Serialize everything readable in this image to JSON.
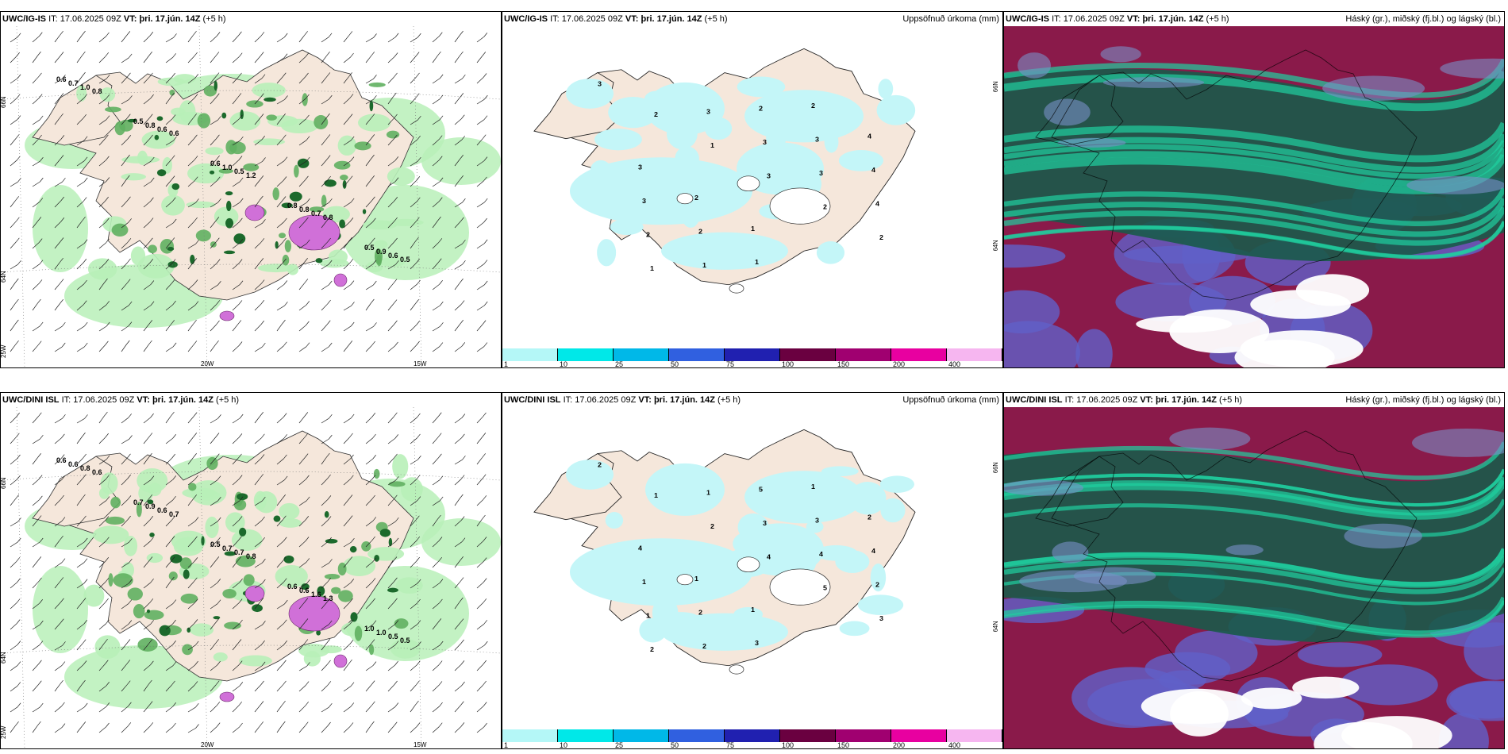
{
  "panels": [
    {
      "model": "UWC/IG-IS",
      "it_label": "IT:",
      "it": "17.06.2025 09Z",
      "vt_label": "VT:",
      "vt": "þri. 17.jún. 14Z",
      "lead": "(+5 h)",
      "right_title": "",
      "axis": {
        "lat1": "66N",
        "lat2": "64N",
        "lat3": "25W",
        "lon1": "20W",
        "lon2": "15W"
      },
      "labels": [
        "0.6",
        "0.5",
        "0.6",
        "0.8",
        "0.5",
        "0.7",
        "0.8",
        "1.0",
        "0.8",
        "0.9",
        "1.0",
        "0.6",
        "0.5",
        "0.7",
        "0.6",
        "0.8",
        "0.6",
        "1.2",
        "0.8",
        "0.5"
      ]
    },
    {
      "model": "UWC/IG-IS",
      "it_label": "IT:",
      "it": "17.06.2025 09Z",
      "vt_label": "VT:",
      "vt": "þri. 17.jún. 14Z",
      "lead": "(+5 h)",
      "right_title": "Uppsöfnuð úrkoma (mm)",
      "axis": {
        "lat1": "66N",
        "lat2": "64N"
      },
      "labels": [
        "3",
        "2",
        "1",
        "3",
        "2",
        "2",
        "1",
        "3",
        "3",
        "3",
        "4",
        "2",
        "1",
        "2",
        "3",
        "4",
        "3",
        "2",
        "1",
        "2",
        "4",
        "3",
        "2",
        "1"
      ]
    },
    {
      "model": "UWC/IG-IS",
      "it_label": "IT:",
      "it": "17.06.2025 09Z",
      "vt_label": "VT:",
      "vt": "þri. 17.jún. 14Z",
      "lead": "(+5 h)",
      "right_title": "Háský (gr.), miðský (fj.bl.) og lágský (bl.)"
    },
    {
      "model": "UWC/DINI ISL",
      "it_label": "IT:",
      "it": "17.06.2025 09Z",
      "vt_label": "VT:",
      "vt": "þri. 17.jún. 14Z",
      "lead": "(+5 h)",
      "right_title": "",
      "axis": {
        "lat1": "66N",
        "lat2": "64N",
        "lat3": "25W",
        "lon1": "20W",
        "lon2": "15W"
      },
      "labels": [
        "0.6",
        "0.7",
        "0.5",
        "0.6",
        "1.0",
        "0.6",
        "0.9",
        "0.7",
        "0.6",
        "1.0",
        "0.8",
        "0.6",
        "0.7",
        "1.6",
        "0.5",
        "0.6",
        "0.7",
        "0.8",
        "1.3",
        "0.5"
      ]
    },
    {
      "model": "UWC/DINI ISL",
      "it_label": "IT:",
      "it": "17.06.2025 09Z",
      "vt_label": "VT:",
      "vt": "þri. 17.jún. 14Z",
      "lead": "(+5 h)",
      "right_title": "Uppsöfnuð úrkoma (mm)",
      "axis": {
        "lat1": "66N",
        "lat2": "64N"
      },
      "labels": [
        "2",
        "1",
        "2",
        "4",
        "5",
        "3",
        "2",
        "1",
        "3",
        "4",
        "2",
        "1",
        "2",
        "5",
        "3",
        "4",
        "1",
        "2",
        "3",
        "1",
        "2",
        "4",
        "1",
        "1"
      ]
    },
    {
      "model": "UWC/DINI ISL",
      "it_label": "IT:",
      "it": "17.06.2025 09Z",
      "vt_label": "VT:",
      "vt": "þri. 17.jún. 14Z",
      "lead": "(+5 h)",
      "right_title": "Háský (gr.), miðský (fj.bl.) og lágský (bl.)"
    }
  ],
  "colorbar": {
    "colors": [
      "#b4f7f7",
      "#00e8e8",
      "#00b8e8",
      "#3060e0",
      "#2020b0",
      "#6a0040",
      "#a00070",
      "#e800a0",
      "#f6b6f0"
    ],
    "ticks": [
      "1",
      "10",
      "25",
      "50",
      "75",
      "100",
      "150",
      "200",
      "400"
    ]
  },
  "colors": {
    "land": "#f5e7db",
    "precip_light": "#b8f0b8",
    "precip_mid": "#60b060",
    "precip_dark": "#1c6a2c",
    "magenta": "#d070d8",
    "accum_cyan": "#c4f6f8",
    "cloud_high": "#1a5a4a",
    "cloud_mid": "#8a1a4a",
    "cloud_low": "#6060c8"
  }
}
